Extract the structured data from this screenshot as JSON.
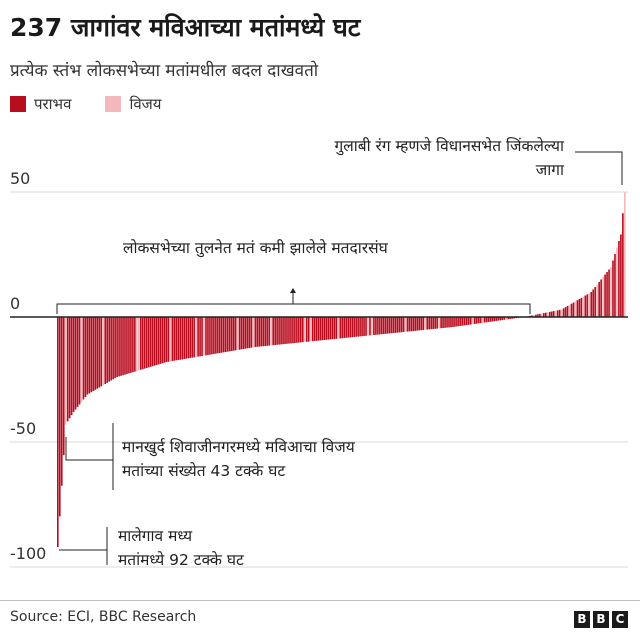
{
  "header": {
    "title": "237 जागांवर मविआच्या मतांमध्ये घट",
    "subtitle": "प्रत्येक स्तंभ लोकसभेच्या मतांमधील बदल दाखवतो"
  },
  "legend": {
    "loss_label": "पराभव",
    "win_label": "विजय"
  },
  "colors": {
    "loss": "#b80c1f",
    "win": "#f3b8bb",
    "grid": "#d9d9d9",
    "axis": "#222222"
  },
  "annotations": {
    "pink_note_line1": "गुलाबी रंग म्हणजे विधानसभेत जिंकलेल्या",
    "pink_note_line2": "जागा",
    "decline_note": "लोकसभेच्या तुलनेत मतं कमी झालेले मतदारसंघ",
    "mankhurd_line1": "मानखुर्द शिवाजीनगरमध्ये मविआचा विजय",
    "mankhurd_line2": "मतांच्या संख्येत 43 टक्के घट",
    "malegaon_line1": "मालेगाव मध्य",
    "malegaon_line2": "मतांमध्ये 92 टक्के घट"
  },
  "footer": {
    "source": "Source: ECI, BBC Research",
    "logo_letters": [
      "B",
      "B",
      "C"
    ]
  },
  "chart_data": {
    "type": "bar",
    "title": "237 जागांवर मविआच्या मतांमध्ये घट",
    "subtitle": "प्रत्येक स्तंभ लोकसभेच्या मतांमधील बदल दाखवतो",
    "xlabel": "",
    "ylabel": "",
    "ylim": [
      -100,
      55
    ],
    "yticks": [
      50,
      0,
      -50,
      -100
    ],
    "grid": true,
    "legend_position": "top-left",
    "bar_count": 288,
    "series": [
      {
        "name": "पराभव",
        "color": "#b80c1f"
      },
      {
        "name": "विजय",
        "color": "#f3b8bb"
      }
    ],
    "values_description_points": [
      {
        "rank": 0,
        "value": -92,
        "result": "पराभव",
        "label": "मालेगाव मध्य"
      },
      {
        "rank": 4,
        "value": -43,
        "result": "विजय",
        "label": "मानखुर्द शिवाजीनगर"
      },
      {
        "rank": 8,
        "value": -38
      },
      {
        "rank": 15,
        "value": -31
      },
      {
        "rank": 30,
        "value": -24
      },
      {
        "rank": 55,
        "value": -18
      },
      {
        "rank": 100,
        "value": -12
      },
      {
        "rank": 150,
        "value": -8
      },
      {
        "rank": 200,
        "value": -4
      },
      {
        "rank": 236,
        "value": 0
      },
      {
        "rank": 255,
        "value": 3
      },
      {
        "rank": 270,
        "value": 10
      },
      {
        "rank": 280,
        "value": 20
      },
      {
        "rank": 285,
        "value": 33
      },
      {
        "rank": 287,
        "value": 50
      }
    ]
  }
}
